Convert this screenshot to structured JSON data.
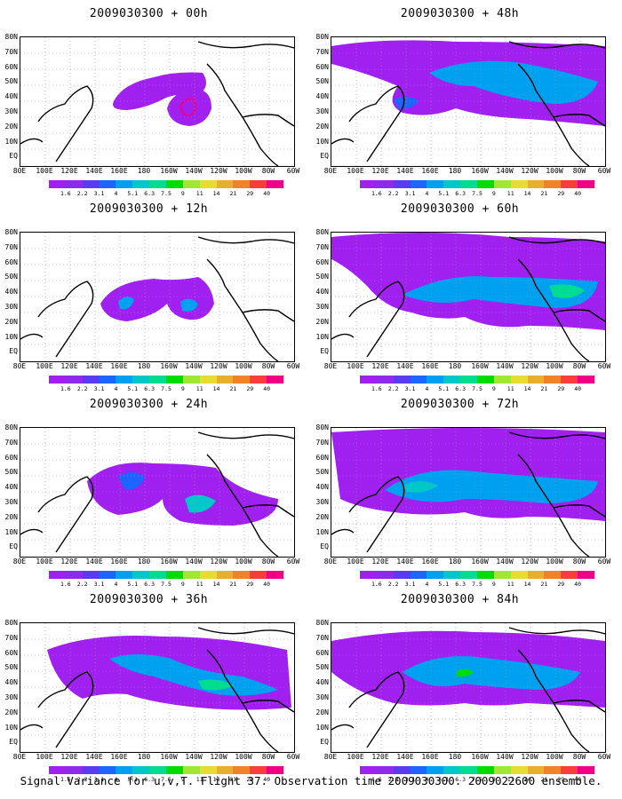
{
  "panels": [
    {
      "title": "2009030300 + 00h"
    },
    {
      "title": "2009030300 + 12h"
    },
    {
      "title": "2009030300 + 24h"
    },
    {
      "title": "2009030300 + 36h"
    },
    {
      "title": "2009030300 + 48h"
    },
    {
      "title": "2009030300 + 60h"
    },
    {
      "title": "2009030300 + 72h"
    },
    {
      "title": "2009030300 + 84h"
    }
  ],
  "lat_labels": [
    "80N",
    "70N",
    "60N",
    "50N",
    "40N",
    "30N",
    "20N",
    "10N",
    "EQ"
  ],
  "lon_labels": [
    "80E",
    "100E",
    "120E",
    "140E",
    "160E",
    "180",
    "160W",
    "140W",
    "120W",
    "100W",
    "80W",
    "60W"
  ],
  "colorbar": {
    "levels": [
      "1.6",
      "2.2",
      "3.1",
      "4",
      "5.1",
      "6.3",
      "7.5",
      "9",
      "11",
      "14",
      "21",
      "29",
      "40"
    ],
    "colors": [
      "#a020f0",
      "#8c2bea",
      "#5a3cf0",
      "#1e64ff",
      "#00a0f0",
      "#00c8c8",
      "#00dc90",
      "#00dc00",
      "#a0e632",
      "#e6dc32",
      "#e6af2d",
      "#f08228",
      "#fa3c3c",
      "#f00082"
    ]
  },
  "caption": "Signal Variance for u,v,T. Flight 37. Observation time 2009030300. 2009022600 ensemble."
}
